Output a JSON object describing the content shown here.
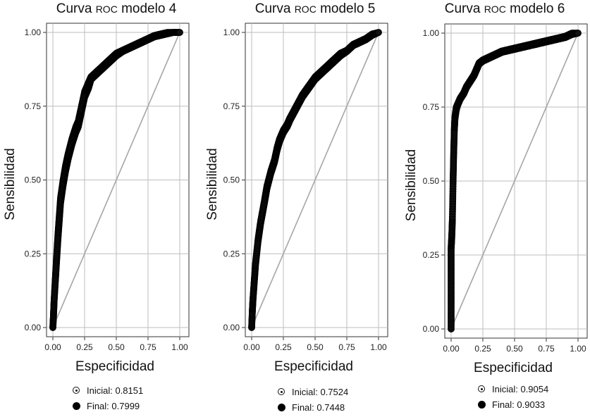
{
  "charts": [
    {
      "title_pre": "Curva ",
      "title_roc": "ROC",
      "title_post": " modelo 4",
      "xlabel": "Especificidad",
      "ylabel": "Sensibilidad",
      "legend": [
        {
          "symbol": "open-circle",
          "label": "Inicial: 0.8151"
        },
        {
          "symbol": "filled-circle",
          "label": "Final: 0.7999"
        }
      ]
    },
    {
      "title_pre": "Curva ",
      "title_roc": "ROC",
      "title_post": " modelo 5",
      "xlabel": "Especificidad",
      "ylabel": "Sensibilidad",
      "legend": [
        {
          "symbol": "open-circle",
          "label": "Inicial: 0.7524"
        },
        {
          "symbol": "filled-circle",
          "label": "Final: 0.7448"
        }
      ]
    },
    {
      "title_pre": "Curva ",
      "title_roc": "ROC",
      "title_post": " modelo 6",
      "xlabel": "Especificidad",
      "ylabel": "Sensibilidad",
      "legend": [
        {
          "symbol": "open-circle",
          "label": "Inicial: 0.9054"
        },
        {
          "symbol": "filled-circle",
          "label": "Final: 0.9033"
        }
      ]
    }
  ],
  "chart_data": [
    {
      "type": "line",
      "title": "Curva ROC modelo 4",
      "xlabel": "Especificidad",
      "ylabel": "Sensibilidad",
      "xlim": [
        0,
        1
      ],
      "ylim": [
        0,
        1
      ],
      "xticks": [
        "0.00",
        "0.25",
        "0.50",
        "0.75",
        "1.00"
      ],
      "yticks": [
        "0.00",
        "0.25",
        "0.50",
        "0.75",
        "1.00"
      ],
      "grid": true,
      "series": [
        {
          "name": "Inicial: 0.8151",
          "marker": "open-circle",
          "x": [
            0,
            0.005,
            0.01,
            0.02,
            0.03,
            0.04,
            0.05,
            0.06,
            0.08,
            0.1,
            0.12,
            0.15,
            0.18,
            0.2,
            0.22,
            0.25,
            0.28,
            0.3,
            0.35,
            0.4,
            0.45,
            0.5,
            0.55,
            0.6,
            0.65,
            0.7,
            0.75,
            0.8,
            0.85,
            0.9,
            0.95,
            1.0
          ],
          "y": [
            0,
            0.05,
            0.1,
            0.18,
            0.25,
            0.32,
            0.38,
            0.44,
            0.5,
            0.55,
            0.59,
            0.64,
            0.68,
            0.7,
            0.74,
            0.8,
            0.83,
            0.85,
            0.87,
            0.89,
            0.91,
            0.93,
            0.94,
            0.95,
            0.96,
            0.97,
            0.98,
            0.99,
            0.995,
            1.0,
            1.0,
            1.0
          ]
        },
        {
          "name": "Final: 0.7999",
          "marker": "filled-circle",
          "x": [
            0,
            0.005,
            0.01,
            0.02,
            0.03,
            0.04,
            0.05,
            0.06,
            0.08,
            0.1,
            0.12,
            0.15,
            0.18,
            0.2,
            0.22,
            0.25,
            0.28,
            0.3,
            0.35,
            0.4,
            0.45,
            0.5,
            0.55,
            0.6,
            0.65,
            0.7,
            0.75,
            0.8,
            0.85,
            0.9,
            0.95,
            1.0
          ],
          "y": [
            0,
            0.04,
            0.09,
            0.16,
            0.23,
            0.3,
            0.36,
            0.42,
            0.48,
            0.53,
            0.57,
            0.62,
            0.66,
            0.68,
            0.72,
            0.78,
            0.81,
            0.84,
            0.86,
            0.88,
            0.9,
            0.92,
            0.935,
            0.945,
            0.955,
            0.965,
            0.975,
            0.985,
            0.99,
            0.995,
            1.0,
            1.0
          ]
        },
        {
          "name": "reference",
          "marker": "none",
          "x": [
            0,
            1
          ],
          "y": [
            0,
            1
          ]
        }
      ]
    },
    {
      "type": "line",
      "title": "Curva ROC modelo 5",
      "xlabel": "Especificidad",
      "ylabel": "Sensibilidad",
      "xlim": [
        0,
        1
      ],
      "ylim": [
        0,
        1
      ],
      "xticks": [
        "0.00",
        "0.25",
        "0.50",
        "0.75",
        "1.00"
      ],
      "yticks": [
        "0.00",
        "0.25",
        "0.50",
        "0.75",
        "1.00"
      ],
      "grid": true,
      "series": [
        {
          "name": "Inicial: 0.7524",
          "marker": "open-circle",
          "x": [
            0,
            0.005,
            0.01,
            0.02,
            0.03,
            0.05,
            0.07,
            0.1,
            0.12,
            0.15,
            0.18,
            0.2,
            0.22,
            0.25,
            0.28,
            0.3,
            0.35,
            0.4,
            0.45,
            0.5,
            0.55,
            0.6,
            0.65,
            0.7,
            0.75,
            0.8,
            0.85,
            0.9,
            0.95,
            1.0
          ],
          "y": [
            0,
            0.06,
            0.1,
            0.16,
            0.22,
            0.3,
            0.36,
            0.43,
            0.48,
            0.53,
            0.57,
            0.61,
            0.64,
            0.67,
            0.69,
            0.71,
            0.75,
            0.79,
            0.82,
            0.85,
            0.87,
            0.89,
            0.91,
            0.93,
            0.94,
            0.96,
            0.97,
            0.98,
            0.995,
            1.0
          ]
        },
        {
          "name": "Final: 0.7448",
          "marker": "filled-circle",
          "x": [
            0,
            0.005,
            0.01,
            0.02,
            0.03,
            0.05,
            0.07,
            0.1,
            0.12,
            0.15,
            0.18,
            0.2,
            0.22,
            0.25,
            0.28,
            0.3,
            0.35,
            0.4,
            0.45,
            0.5,
            0.55,
            0.6,
            0.65,
            0.7,
            0.75,
            0.8,
            0.85,
            0.9,
            0.95,
            1.0
          ],
          "y": [
            0,
            0.05,
            0.09,
            0.15,
            0.21,
            0.29,
            0.35,
            0.42,
            0.47,
            0.52,
            0.56,
            0.6,
            0.63,
            0.66,
            0.68,
            0.7,
            0.74,
            0.78,
            0.81,
            0.84,
            0.86,
            0.88,
            0.9,
            0.92,
            0.935,
            0.955,
            0.965,
            0.975,
            0.99,
            1.0
          ]
        },
        {
          "name": "reference",
          "marker": "none",
          "x": [
            0,
            1
          ],
          "y": [
            0,
            1
          ]
        }
      ]
    },
    {
      "type": "line",
      "title": "Curva ROC modelo 6",
      "xlabel": "Especificidad",
      "ylabel": "Sensibilidad",
      "xlim": [
        0,
        1
      ],
      "ylim": [
        0,
        1
      ],
      "xticks": [
        "0.00",
        "0.25",
        "0.50",
        "0.75",
        "1.00"
      ],
      "yticks": [
        "0.00",
        "0.25",
        "0.50",
        "0.75",
        "1.00"
      ],
      "grid": true,
      "series": [
        {
          "name": "Inicial: 0.9054",
          "marker": "open-circle",
          "x": [
            0,
            0.0,
            0.0,
            0.0,
            0.005,
            0.01,
            0.015,
            0.02,
            0.025,
            0.03,
            0.04,
            0.05,
            0.07,
            0.1,
            0.12,
            0.15,
            0.18,
            0.2,
            0.22,
            0.25,
            0.3,
            0.35,
            0.4,
            0.5,
            0.6,
            0.7,
            0.8,
            0.9,
            0.95,
            1.0
          ],
          "y": [
            0,
            0.1,
            0.2,
            0.28,
            0.32,
            0.38,
            0.5,
            0.6,
            0.68,
            0.72,
            0.75,
            0.76,
            0.78,
            0.8,
            0.82,
            0.84,
            0.86,
            0.88,
            0.9,
            0.91,
            0.92,
            0.93,
            0.94,
            0.95,
            0.96,
            0.97,
            0.98,
            0.99,
            1.0,
            1.0
          ]
        },
        {
          "name": "Final: 0.9033",
          "marker": "filled-circle",
          "x": [
            0,
            0.0,
            0.0,
            0.0,
            0.005,
            0.01,
            0.015,
            0.02,
            0.025,
            0.03,
            0.04,
            0.05,
            0.07,
            0.1,
            0.12,
            0.15,
            0.18,
            0.2,
            0.22,
            0.25,
            0.3,
            0.35,
            0.4,
            0.5,
            0.6,
            0.7,
            0.8,
            0.9,
            0.95,
            1.0
          ],
          "y": [
            0,
            0.09,
            0.18,
            0.27,
            0.31,
            0.37,
            0.49,
            0.59,
            0.67,
            0.71,
            0.74,
            0.755,
            0.775,
            0.795,
            0.815,
            0.835,
            0.855,
            0.875,
            0.895,
            0.905,
            0.915,
            0.925,
            0.935,
            0.945,
            0.955,
            0.965,
            0.975,
            0.985,
            0.995,
            1.0
          ]
        },
        {
          "name": "reference",
          "marker": "none",
          "x": [
            0,
            1
          ],
          "y": [
            0,
            1
          ]
        }
      ]
    }
  ]
}
